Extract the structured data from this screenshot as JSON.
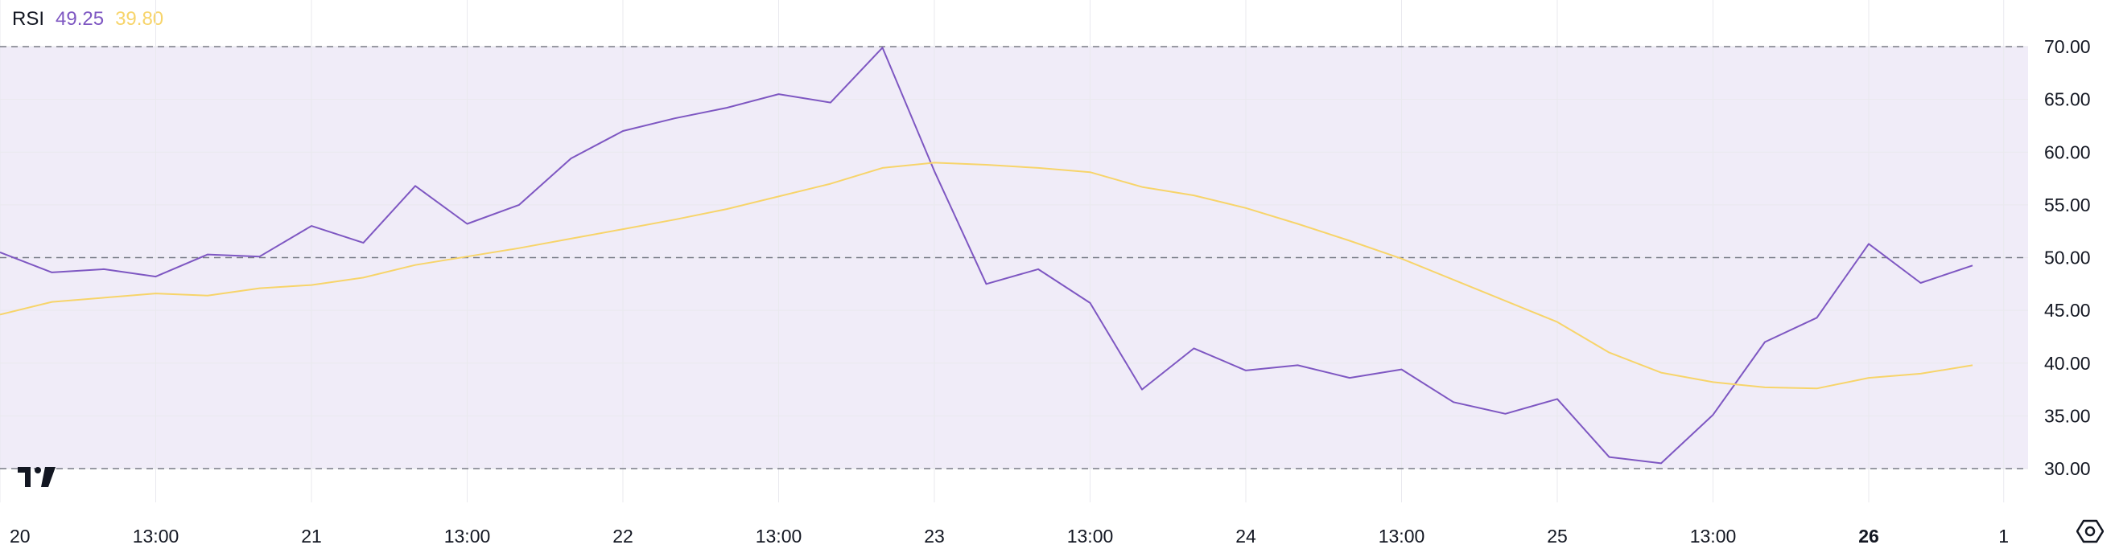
{
  "legend": {
    "name": "RSI",
    "rsi_value": "49.25",
    "ma_value": "39.80"
  },
  "colors": {
    "rsi": "#7e57c2",
    "ma": "#f7d46a",
    "band": "#f0ecf8",
    "grid": "#e9e9ee",
    "level": "#787b86"
  },
  "icons": {
    "logo": "tradingview-logo-icon",
    "settings": "settings-icon"
  },
  "chart_data": {
    "type": "line",
    "ylim": [
      30,
      70
    ],
    "bands": {
      "upper": 70,
      "middle": 50,
      "lower": 30
    },
    "y_ticks": [
      "70.00",
      "65.00",
      "60.00",
      "55.00",
      "50.00",
      "45.00",
      "40.00",
      "35.00",
      "30.00"
    ],
    "x_ticks": [
      {
        "label": "20",
        "index": 0,
        "bold": false
      },
      {
        "label": "13:00",
        "index": 3,
        "bold": false
      },
      {
        "label": "21",
        "index": 6,
        "bold": false
      },
      {
        "label": "13:00",
        "index": 9,
        "bold": false
      },
      {
        "label": "22",
        "index": 12,
        "bold": false
      },
      {
        "label": "13:00",
        "index": 15,
        "bold": false
      },
      {
        "label": "23",
        "index": 18,
        "bold": false
      },
      {
        "label": "13:00",
        "index": 21,
        "bold": false
      },
      {
        "label": "24",
        "index": 24,
        "bold": false
      },
      {
        "label": "13:00",
        "index": 27,
        "bold": false
      },
      {
        "label": "25",
        "index": 30,
        "bold": false
      },
      {
        "label": "13:00",
        "index": 33,
        "bold": false
      },
      {
        "label": "26",
        "index": 36,
        "bold": true
      },
      {
        "label": "1",
        "index": 38.6,
        "bold": false
      }
    ],
    "series": [
      {
        "values": [
          50.5,
          48.6,
          48.9,
          48.2,
          50.3,
          50.1,
          53.0,
          51.4,
          56.8,
          53.2,
          55.0,
          59.4,
          62.0,
          63.2,
          64.2,
          65.5,
          64.7,
          69.9,
          58.2,
          47.5,
          48.9,
          45.7,
          37.5,
          41.4,
          39.3,
          39.8,
          38.6,
          39.4,
          36.3,
          35.2,
          36.6,
          31.1,
          30.5,
          35.1,
          42.0,
          44.3,
          51.3,
          47.6,
          49.25
        ]
      },
      {
        "values": [
          44.6,
          45.8,
          46.2,
          46.6,
          46.4,
          47.1,
          47.4,
          48.1,
          49.3,
          50.1,
          50.9,
          51.8,
          52.7,
          53.6,
          54.6,
          55.8,
          57.0,
          58.5,
          59.0,
          58.8,
          58.5,
          58.1,
          56.7,
          55.9,
          54.7,
          53.2,
          51.6,
          49.9,
          47.9,
          45.9,
          43.9,
          41.0,
          39.1,
          38.2,
          37.7,
          37.6,
          38.6,
          39.0,
          39.8
        ]
      }
    ]
  }
}
